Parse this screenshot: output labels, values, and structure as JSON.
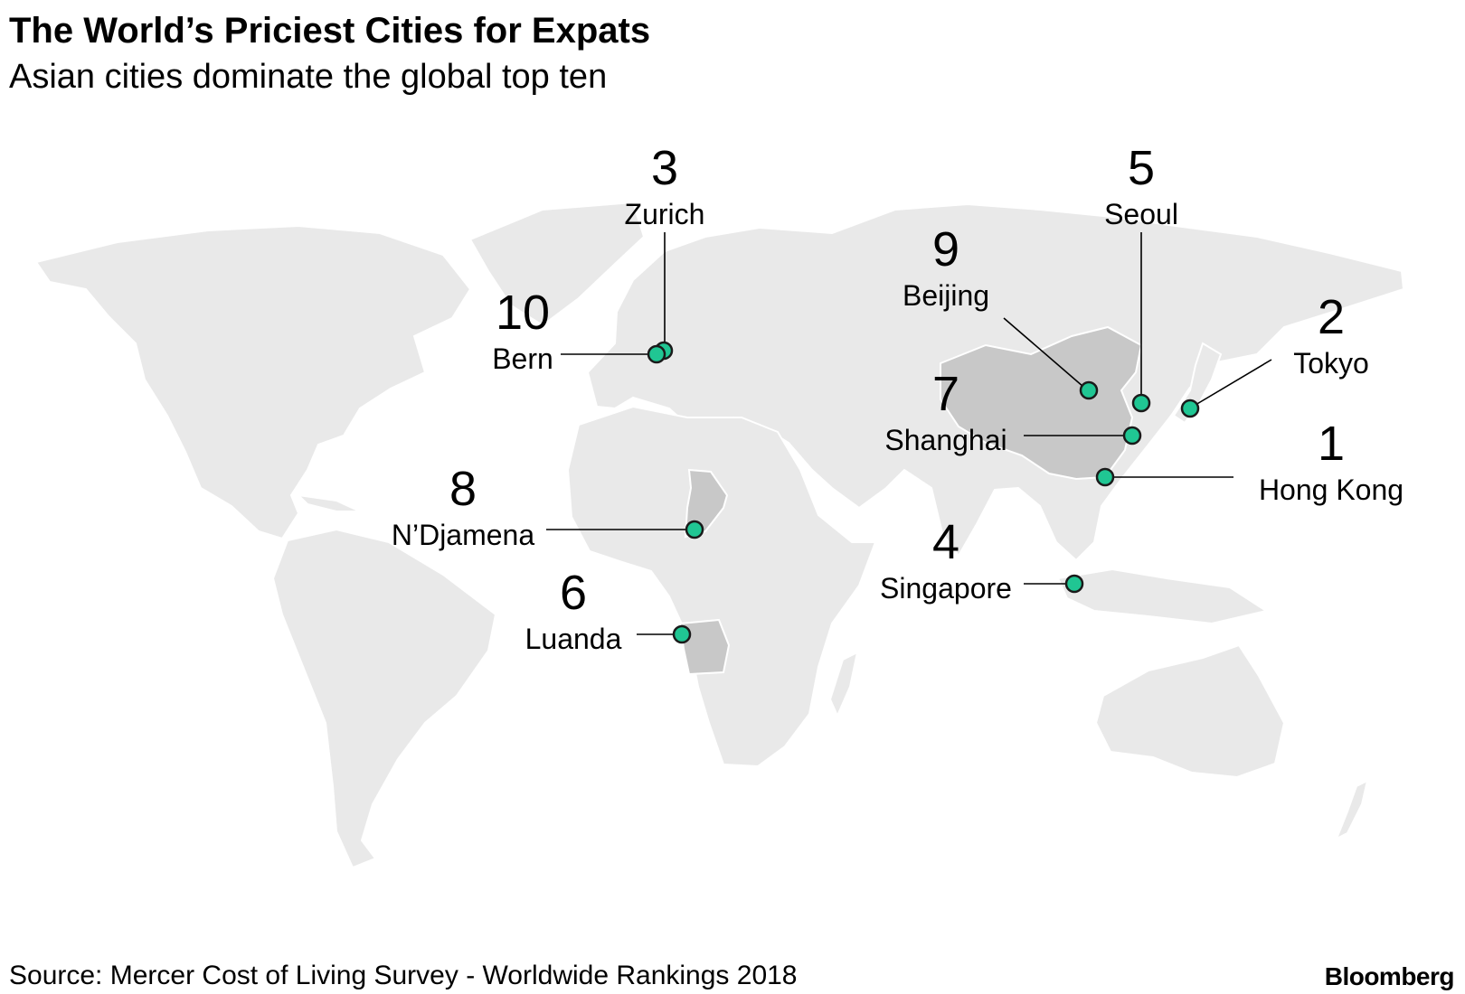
{
  "title": "The World’s Priciest Cities for Expats",
  "subtitle": "Asian cities dominate the global top ten",
  "source": "Source: Mercer Cost of Living Survey - Worldwide Rankings 2018",
  "brand": "Bloomberg",
  "colors": {
    "land": "#e9e9e9",
    "highlighted_country": "#c8c8c8",
    "marker": "#20c693",
    "marker_outline": "#1a1a1a"
  },
  "highlighted_countries": [
    "China",
    "Chad",
    "Angola"
  ],
  "cities": [
    {
      "rank": "1",
      "name": "Hong Kong"
    },
    {
      "rank": "2",
      "name": "Tokyo"
    },
    {
      "rank": "3",
      "name": "Zurich"
    },
    {
      "rank": "4",
      "name": "Singapore"
    },
    {
      "rank": "5",
      "name": "Seoul"
    },
    {
      "rank": "6",
      "name": "Luanda"
    },
    {
      "rank": "7",
      "name": "Shanghai"
    },
    {
      "rank": "8",
      "name": "N’Djamena"
    },
    {
      "rank": "9",
      "name": "Beijing"
    },
    {
      "rank": "10",
      "name": "Bern"
    }
  ]
}
